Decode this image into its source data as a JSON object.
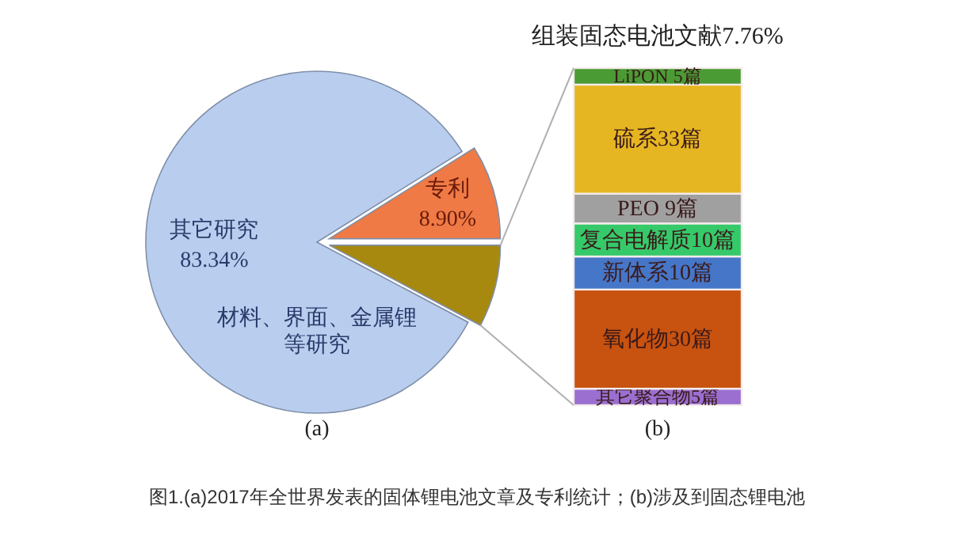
{
  "chart_data": [
    {
      "type": "pie",
      "xlabel": "(a)",
      "categories": [
        "其它研究",
        "专利",
        null
      ],
      "values": [
        83.34,
        8.9,
        7.76
      ],
      "value_labels": [
        "83.34%",
        "8.90%",
        null
      ],
      "colors": [
        "#b9cdef",
        "#ef7a45",
        "#a8890f"
      ],
      "annotations": [
        "材料、界面、金属锂等研究",
        "图1.(a)2017年全世界发表的固体锂电池文章及专利统计；(b)涉及到固态锂电池"
      ]
    },
    {
      "type": "bar",
      "stacked": true,
      "title": "组装固态电池文献7.76%",
      "xlabel": "(b)",
      "categories": [
        null
      ],
      "series": [
        {
          "color": "#9a6fd0",
          "values": [
            5
          ],
          "value_labels": [
            "其它聚合物5篇"
          ]
        },
        {
          "color": "#c8520f",
          "values": [
            30
          ],
          "value_labels": [
            "氧化物30篇"
          ]
        },
        {
          "color": "#4676c8",
          "values": [
            10
          ],
          "value_labels": [
            "新体系10篇"
          ]
        },
        {
          "color": "#36c96a",
          "values": [
            10
          ],
          "value_labels": [
            "复合电解质10篇"
          ]
        },
        {
          "color": "#a0a0a0",
          "values": [
            9
          ],
          "value_labels": [
            "PEO 9篇"
          ]
        },
        {
          "color": "#e6b622",
          "values": [
            33
          ],
          "value_labels": [
            "硫系33篇"
          ]
        },
        {
          "color": "#4b9b35",
          "values": [
            5
          ],
          "value_labels": [
            "LiPON 5篇"
          ]
        }
      ]
    }
  ]
}
